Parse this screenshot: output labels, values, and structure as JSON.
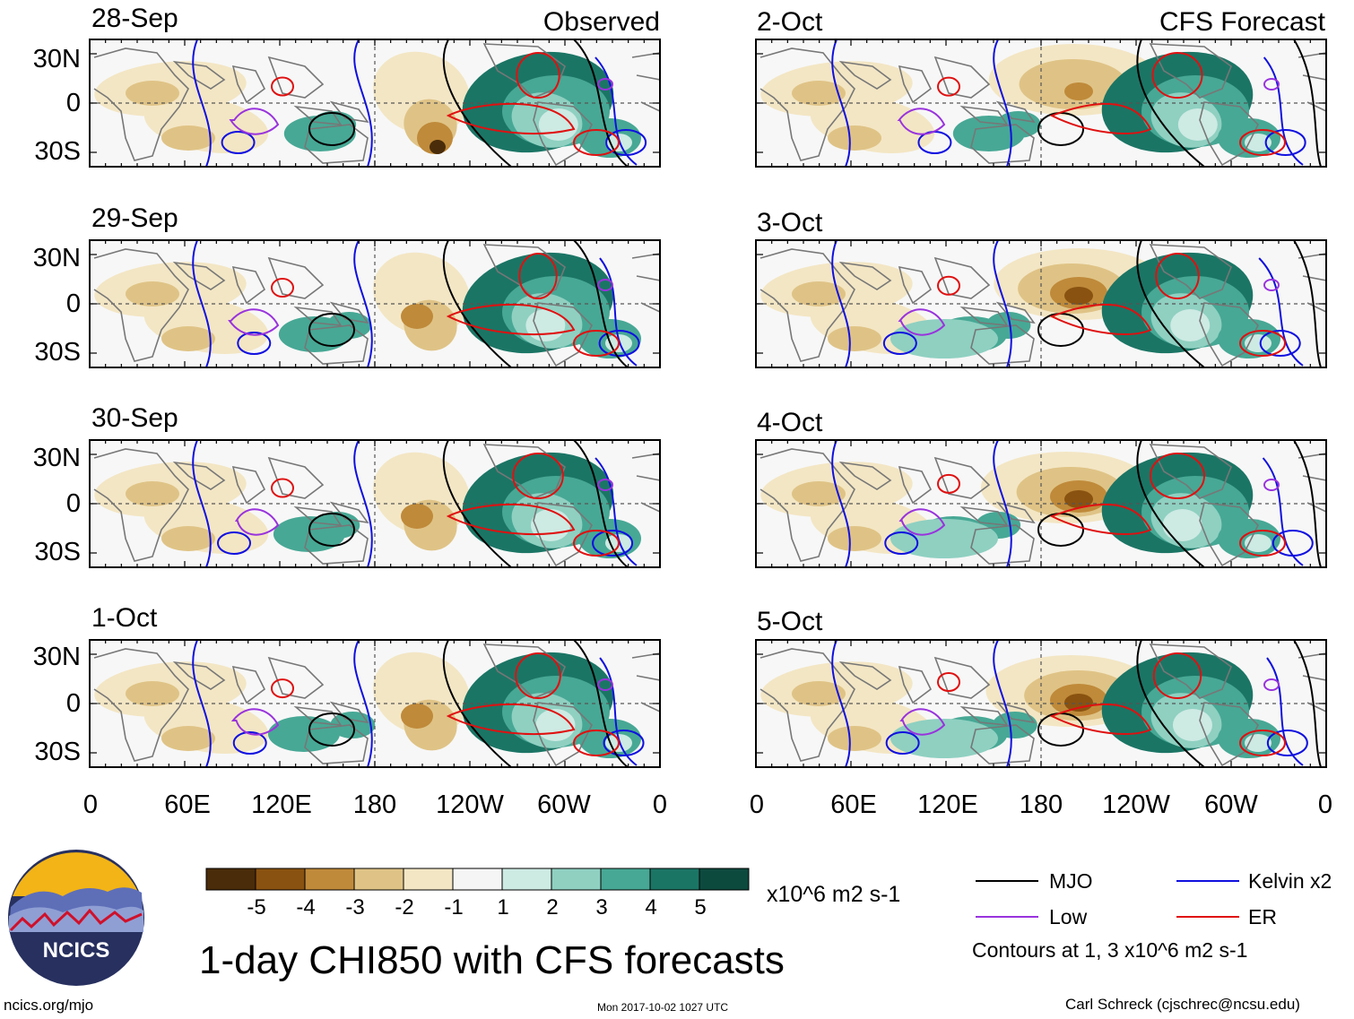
{
  "title": "1-day CHI850 with CFS forecasts",
  "columns": {
    "observed_label": "Observed",
    "forecast_label": "CFS Forecast"
  },
  "panels": {
    "observed": [
      "28-Sep",
      "29-Sep",
      "30-Sep",
      "1-Oct"
    ],
    "forecast": [
      "2-Oct",
      "3-Oct",
      "4-Oct",
      "5-Oct"
    ]
  },
  "lat_ticks": [
    "30N",
    "0",
    "30S"
  ],
  "lon_ticks": [
    "0",
    "60E",
    "120E",
    "180",
    "120W",
    "60W",
    "0"
  ],
  "colorbar": {
    "ticks": [
      "-5",
      "-4",
      "-3",
      "-2",
      "-1",
      "1",
      "2",
      "3",
      "4",
      "5"
    ],
    "units": "x10^6 m2 s-1",
    "colors": [
      "#4a2c0a",
      "#8a5210",
      "#bf8a3a",
      "#dfc386",
      "#f3e6c4",
      "#f5f5f5",
      "#cdeae3",
      "#8fd0c1",
      "#47a895",
      "#1b7565",
      "#0d4a3e"
    ]
  },
  "legend": {
    "items": [
      {
        "label": "MJO",
        "color": "#000000"
      },
      {
        "label": "Kelvin x2",
        "color": "#1010e0"
      },
      {
        "label": "Low",
        "color": "#9933dd"
      },
      {
        "label": "ER",
        "color": "#e01010"
      }
    ],
    "contour_note": "Contours at 1, 3 x10^6 m2 s-1"
  },
  "logo": {
    "text": "NCICS"
  },
  "footer": {
    "url": "ncics.org/mjo",
    "timestamp": "Mon 2017-10-02 1027 UTC",
    "credit": "Carl Schreck (cjschrec@ncsu.edu)"
  }
}
